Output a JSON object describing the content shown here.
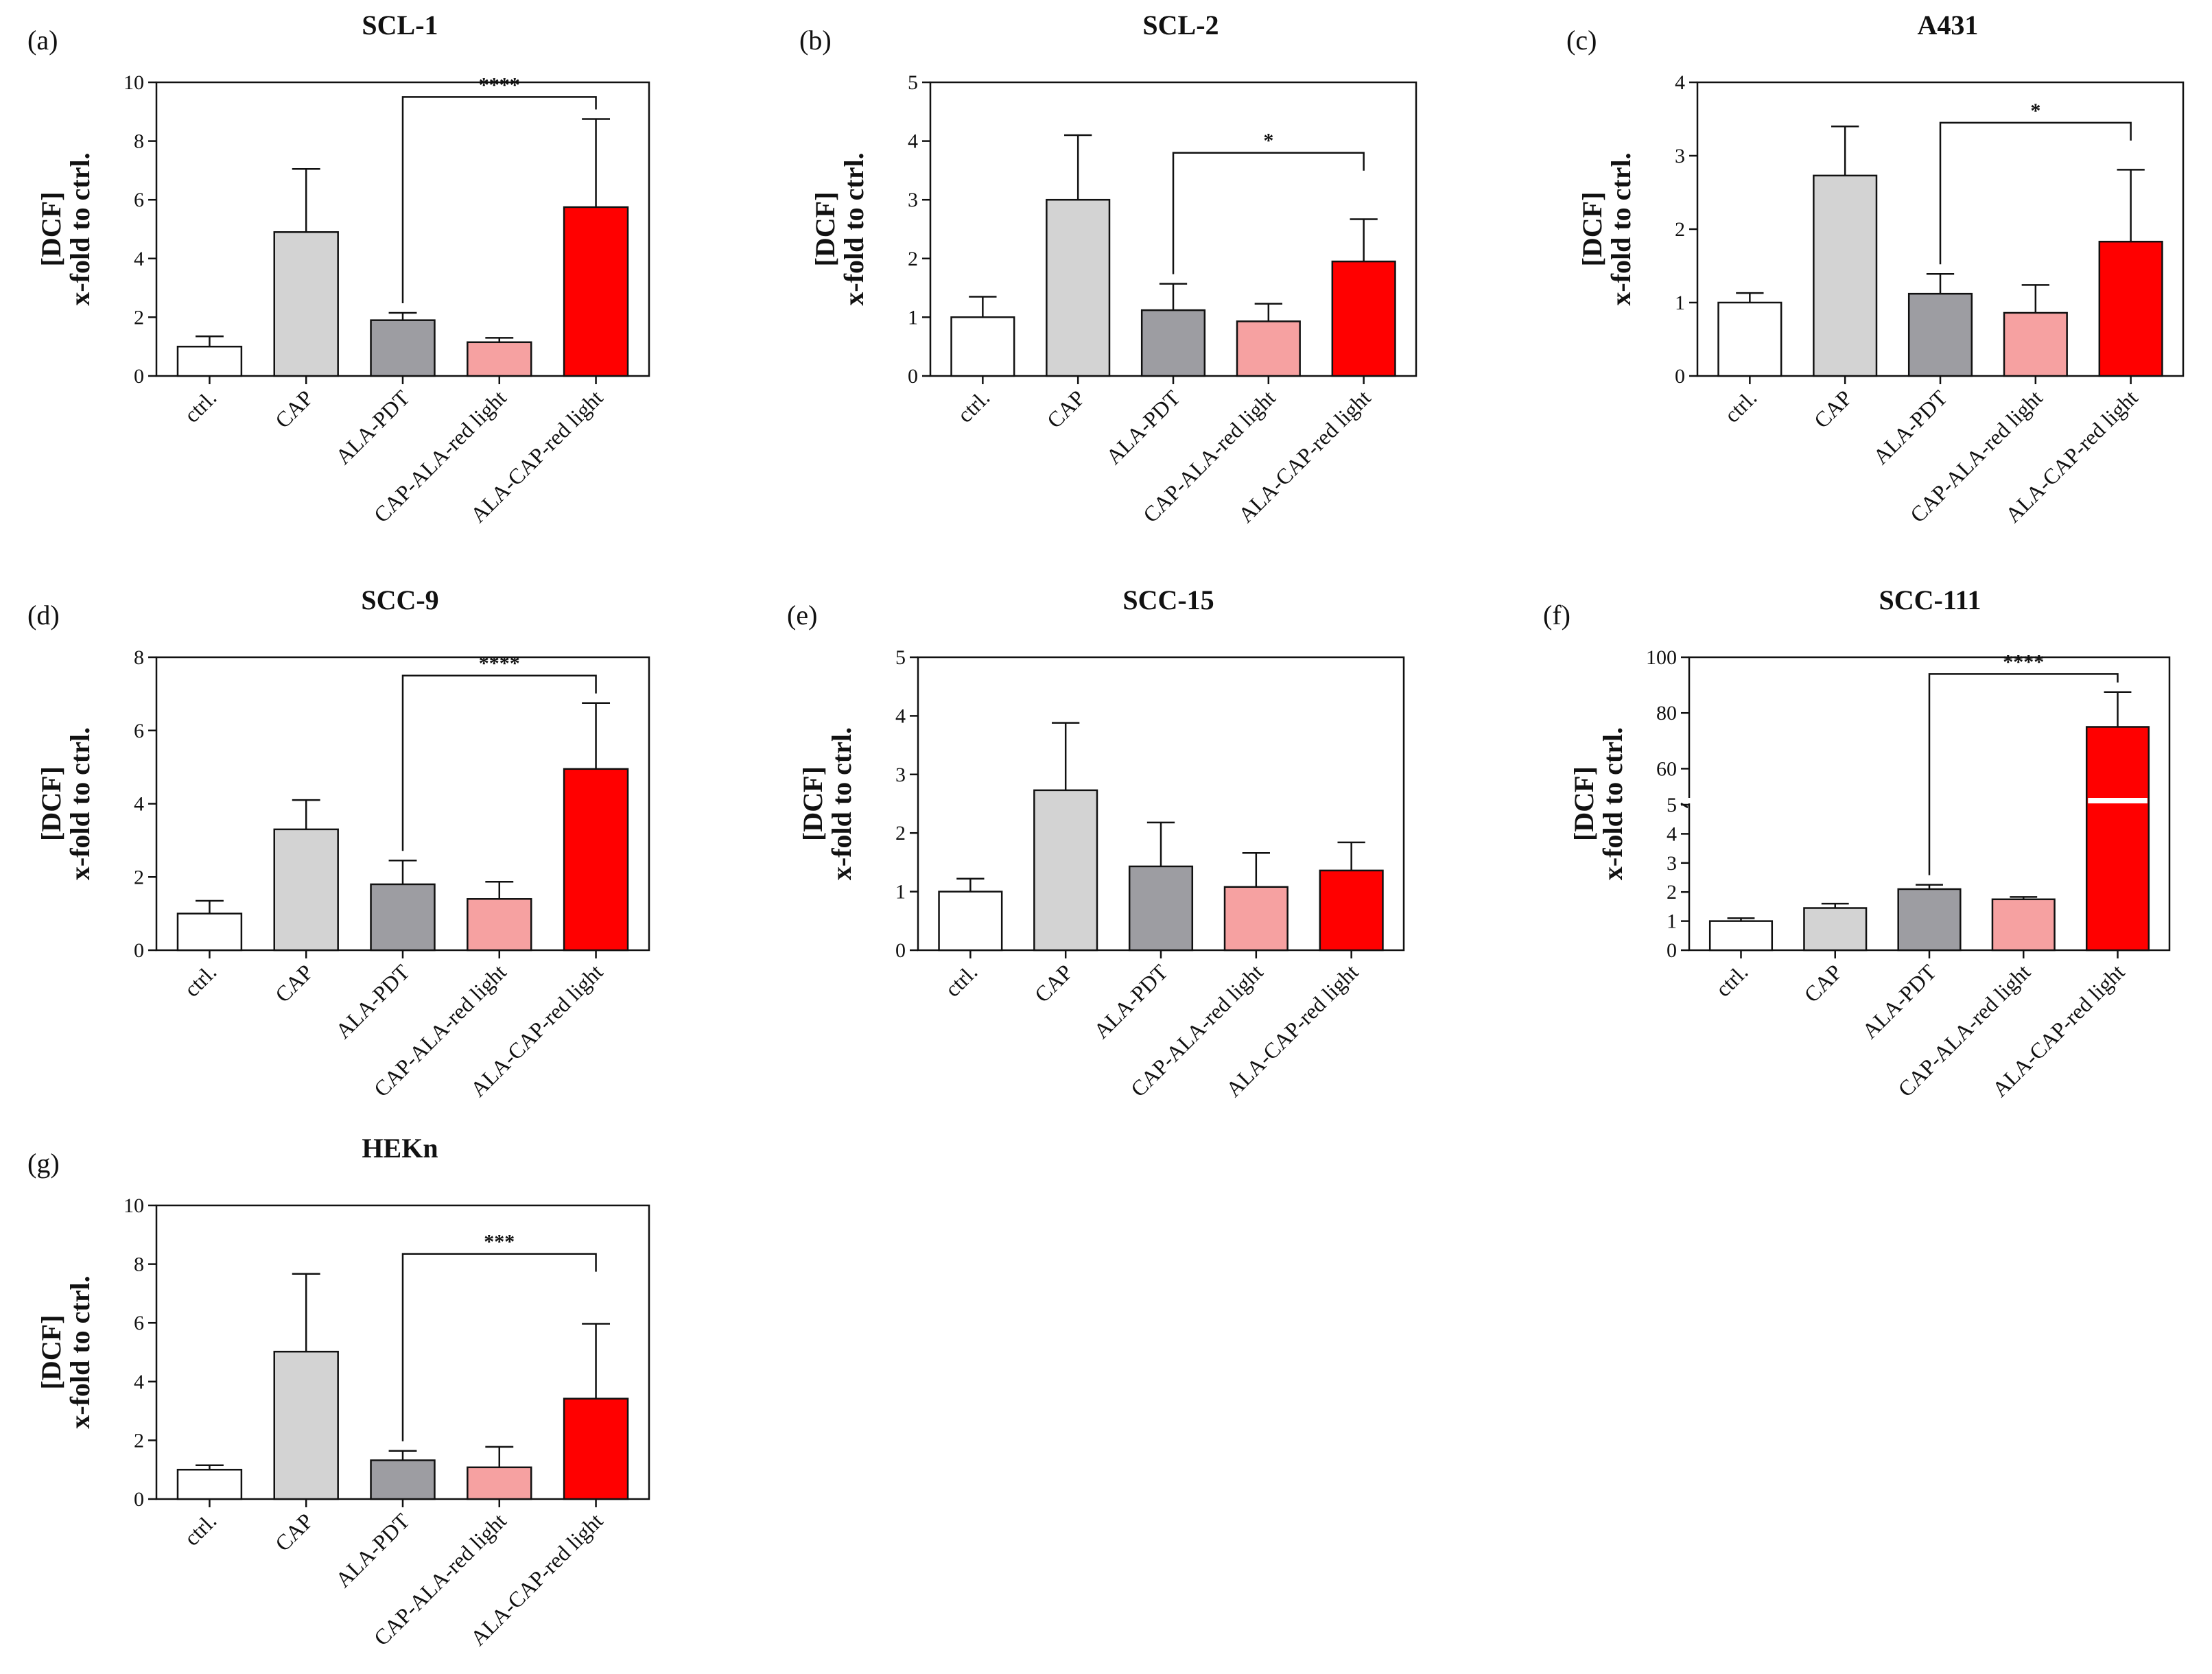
{
  "figure": {
    "colors": {
      "ctrl": "#ffffff",
      "cap": "#d3d3d3",
      "ala_pdt": "#9d9da2",
      "cap_ala": "#f6a1a1",
      "ala_cap": "#ff0000",
      "stroke": "#111111"
    }
  },
  "chart_data": [
    {
      "id": "a",
      "panel_label": "(a)",
      "type": "bar",
      "title": "SCL-1",
      "ylabel_line1": "[DCF]",
      "ylabel_line2": "x-fold to ctrl.",
      "categories": [
        "ctrl.",
        "CAP",
        "ALA-PDT",
        "CAP-ALA-red light",
        "ALA-CAP-red light"
      ],
      "values": [
        1.0,
        4.9,
        1.9,
        1.15,
        5.75
      ],
      "errors": [
        0.35,
        2.15,
        0.25,
        0.15,
        3.0
      ],
      "ylim": [
        0,
        10
      ],
      "yticks": [
        "0",
        "2",
        "4",
        "6",
        "8",
        "10"
      ],
      "significance": {
        "from": 2,
        "to": 4,
        "label": "****",
        "y": 9.5
      }
    },
    {
      "id": "b",
      "panel_label": "(b)",
      "type": "bar",
      "title": "SCL-2",
      "ylabel_line1": "[DCF]",
      "ylabel_line2": "x-fold to ctrl.",
      "categories": [
        "ctrl.",
        "CAP",
        "ALA-PDT",
        "CAP-ALA-red light",
        "ALA-CAP-red light"
      ],
      "values": [
        1.0,
        3.0,
        1.12,
        0.93,
        1.95
      ],
      "errors": [
        0.35,
        1.1,
        0.45,
        0.3,
        0.72
      ],
      "ylim": [
        0,
        5
      ],
      "yticks": [
        "0",
        "1",
        "2",
        "3",
        "4",
        "5"
      ],
      "significance": {
        "from": 2,
        "to": 4,
        "label": "*",
        "y": 3.8
      }
    },
    {
      "id": "c",
      "panel_label": "(c)",
      "type": "bar",
      "title": "A431",
      "ylabel_line1": "[DCF]",
      "ylabel_line2": "x-fold to ctrl.",
      "categories": [
        "ctrl.",
        "CAP",
        "ALA-PDT",
        "CAP-ALA-red light",
        "ALA-CAP-red light"
      ],
      "values": [
        1.0,
        2.73,
        1.12,
        0.86,
        1.83
      ],
      "errors": [
        0.13,
        0.67,
        0.27,
        0.38,
        0.98
      ],
      "ylim": [
        0,
        4
      ],
      "yticks": [
        "0",
        "1",
        "2",
        "3",
        "4"
      ],
      "significance": {
        "from": 2,
        "to": 4,
        "label": "*",
        "y": 3.45
      }
    },
    {
      "id": "d",
      "panel_label": "(d)",
      "type": "bar",
      "title": "SCC-9",
      "ylabel_line1": "[DCF]",
      "ylabel_line2": "x-fold to ctrl.",
      "categories": [
        "ctrl.",
        "CAP",
        "ALA-PDT",
        "CAP-ALA-red light",
        "ALA-CAP-red light"
      ],
      "values": [
        1.0,
        3.3,
        1.8,
        1.4,
        4.95
      ],
      "errors": [
        0.35,
        0.8,
        0.65,
        0.47,
        1.8
      ],
      "ylim": [
        0,
        8
      ],
      "yticks": [
        "0",
        "2",
        "4",
        "6",
        "8"
      ],
      "significance": {
        "from": 2,
        "to": 4,
        "label": "****",
        "y": 7.5
      }
    },
    {
      "id": "e",
      "panel_label": "(e)",
      "type": "bar",
      "title": "SCC-15",
      "ylabel_line1": "[DCF]",
      "ylabel_line2": "x-fold to ctrl.",
      "categories": [
        "ctrl.",
        "CAP",
        "ALA-PDT",
        "CAP-ALA-red light",
        "ALA-CAP-red light"
      ],
      "values": [
        1.0,
        2.73,
        1.43,
        1.08,
        1.36
      ],
      "errors": [
        0.22,
        1.15,
        0.75,
        0.58,
        0.48
      ],
      "ylim": [
        0,
        5
      ],
      "yticks": [
        "0",
        "1",
        "2",
        "3",
        "4",
        "5"
      ],
      "significance": null
    },
    {
      "id": "f",
      "panel_label": "(f)",
      "type": "bar",
      "title": "SCC-111",
      "ylabel_line1": "[DCF]",
      "ylabel_line2": "x-fold to ctrl.",
      "categories": [
        "ctrl.",
        "CAP",
        "ALA-PDT",
        "CAP-ALA-red light",
        "ALA-CAP-red light"
      ],
      "values": [
        1.0,
        1.45,
        2.1,
        1.75,
        75
      ],
      "errors": [
        0.1,
        0.15,
        0.15,
        0.08,
        12.5
      ],
      "broken_axis": {
        "lower": [
          0,
          5
        ],
        "upper": [
          50,
          100
        ]
      },
      "yticks": [
        "0",
        "1",
        "2",
        "3",
        "4",
        "5",
        "60",
        "80",
        "100"
      ],
      "significance": {
        "from": 2,
        "to": 4,
        "label": "****",
        "y": 94
      }
    },
    {
      "id": "g",
      "panel_label": "(g)",
      "type": "bar",
      "title": "HEKn",
      "ylabel_line1": "[DCF]",
      "ylabel_line2": "x-fold to ctrl.",
      "categories": [
        "ctrl.",
        "CAP",
        "ALA-PDT",
        "CAP-ALA-red light",
        "ALA-CAP-red light"
      ],
      "values": [
        1.0,
        5.02,
        1.32,
        1.08,
        3.42
      ],
      "errors": [
        0.15,
        2.65,
        0.32,
        0.7,
        2.55
      ],
      "ylim": [
        0,
        10
      ],
      "yticks": [
        "0",
        "2",
        "4",
        "6",
        "8",
        "10"
      ],
      "significance": {
        "from": 2,
        "to": 4,
        "label": "***",
        "y": 8.35
      }
    }
  ]
}
